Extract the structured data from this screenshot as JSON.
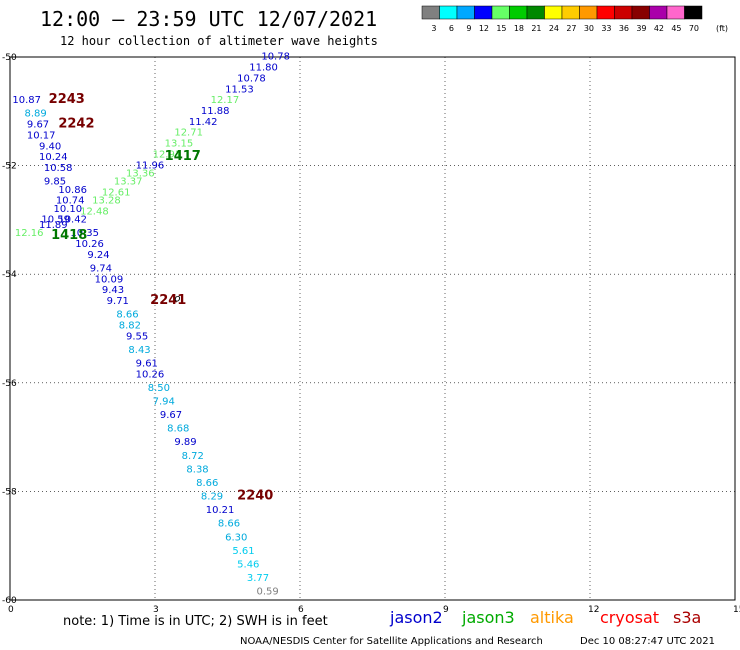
{
  "header": {
    "title": "12:00 – 23:59 UTC 12/07/2021",
    "subtitle": "12 hour collection of altimeter wave heights"
  },
  "legend": {
    "bins": [
      {
        "label": "3",
        "color": "#808080"
      },
      {
        "label": "6",
        "color": "#00ffff"
      },
      {
        "label": "9",
        "color": "#00a8ff"
      },
      {
        "label": "12",
        "color": "#0000ff"
      },
      {
        "label": "15",
        "color": "#66ff66"
      },
      {
        "label": "18",
        "color": "#00cc00"
      },
      {
        "label": "21",
        "color": "#008800"
      },
      {
        "label": "24",
        "color": "#ffff00"
      },
      {
        "label": "27",
        "color": "#ffcc00"
      },
      {
        "label": "30",
        "color": "#ff9900"
      },
      {
        "label": "33",
        "color": "#ff0000"
      },
      {
        "label": "36",
        "color": "#cc0000"
      },
      {
        "label": "39",
        "color": "#880000"
      },
      {
        "label": "42",
        "color": "#aa00aa"
      },
      {
        "label": "45",
        "color": "#ff66cc"
      },
      {
        "label": "70",
        "color": "#000000"
      }
    ],
    "unit": "(ft)"
  },
  "chart_data": {
    "type": "scatter",
    "xlim": [
      0,
      15
    ],
    "ylim": [
      -60,
      -50
    ],
    "x_ticks": [
      "0",
      "3",
      "6",
      "9",
      "12",
      "15"
    ],
    "y_ticks": [
      "-50",
      "-52",
      "-54",
      "-56",
      "-58",
      "-60"
    ],
    "grid": true,
    "points": [
      {
        "x": 5.2,
        "y": -50.05,
        "label": "10.78",
        "color": "#0000cc"
      },
      {
        "x": 4.95,
        "y": -50.25,
        "label": "11.80",
        "color": "#0000cc"
      },
      {
        "x": 4.7,
        "y": -50.45,
        "label": "10.78",
        "color": "#0000cc"
      },
      {
        "x": 4.45,
        "y": -50.65,
        "label": "11.53",
        "color": "#0000cc"
      },
      {
        "x": 4.15,
        "y": -50.85,
        "label": "12.17",
        "color": "#66ee66"
      },
      {
        "x": 3.95,
        "y": -51.05,
        "label": "11.88",
        "color": "#0000cc"
      },
      {
        "x": 3.7,
        "y": -51.25,
        "label": "11.42",
        "color": "#0000cc"
      },
      {
        "x": 3.4,
        "y": -51.45,
        "label": "12.71",
        "color": "#66ee66"
      },
      {
        "x": 3.2,
        "y": -51.65,
        "label": "13.15",
        "color": "#66ee66"
      },
      {
        "x": 2.95,
        "y": -51.85,
        "label": "12.91",
        "color": "#66ee66"
      },
      {
        "x": 2.6,
        "y": -52.05,
        "label": "11.96",
        "color": "#0000cc"
      },
      {
        "x": 2.4,
        "y": -52.2,
        "label": "13.36",
        "color": "#66ee66"
      },
      {
        "x": 2.15,
        "y": -52.35,
        "label": "13.37",
        "color": "#66ee66"
      },
      {
        "x": 1.9,
        "y": -52.55,
        "label": "12.61",
        "color": "#66ee66"
      },
      {
        "x": 1.7,
        "y": -52.7,
        "label": "13.28",
        "color": "#66ee66"
      },
      {
        "x": 1.45,
        "y": -52.9,
        "label": "12.48",
        "color": "#66ee66"
      },
      {
        "x": 0.05,
        "y": -50.85,
        "label": "10.87",
        "color": "#0000cc"
      },
      {
        "x": 0.3,
        "y": -51.1,
        "label": "8.89",
        "color": "#00aadd"
      },
      {
        "x": 0.35,
        "y": -51.3,
        "label": "9.67",
        "color": "#0000cc"
      },
      {
        "x": 0.35,
        "y": -51.5,
        "label": "10.17",
        "color": "#0000cc"
      },
      {
        "x": 0.6,
        "y": -51.7,
        "label": "9.40",
        "color": "#0000cc"
      },
      {
        "x": 0.6,
        "y": -51.9,
        "label": "10.24",
        "color": "#0000cc"
      },
      {
        "x": 0.7,
        "y": -52.1,
        "label": "10.58",
        "color": "#0000cc"
      },
      {
        "x": 0.7,
        "y": -52.35,
        "label": "9.85",
        "color": "#0000cc"
      },
      {
        "x": 1.0,
        "y": -52.5,
        "label": "10.86",
        "color": "#0000cc"
      },
      {
        "x": 0.95,
        "y": -52.7,
        "label": "10.74",
        "color": "#0000cc"
      },
      {
        "x": 0.9,
        "y": -52.85,
        "label": "10.10",
        "color": "#0000cc"
      },
      {
        "x": 1.0,
        "y": -53.05,
        "label": "10.42",
        "color": "#0000cc"
      },
      {
        "x": 0.65,
        "y": -53.05,
        "label": "10.59",
        "color": "#0000cc"
      },
      {
        "x": 0.6,
        "y": -53.15,
        "label": "11.89",
        "color": "#0000cc"
      },
      {
        "x": 0.1,
        "y": -53.3,
        "label": "12.16",
        "color": "#66ee66"
      },
      {
        "x": 1.25,
        "y": -53.3,
        "label": "10.35",
        "color": "#0000cc"
      },
      {
        "x": 1.35,
        "y": -53.5,
        "label": "10.26",
        "color": "#0000cc"
      },
      {
        "x": 1.6,
        "y": -53.7,
        "label": "9.24",
        "color": "#0000cc"
      },
      {
        "x": 1.65,
        "y": -53.95,
        "label": "9.74",
        "color": "#0000cc"
      },
      {
        "x": 1.75,
        "y": -54.15,
        "label": "10.09",
        "color": "#0000cc"
      },
      {
        "x": 1.9,
        "y": -54.35,
        "label": "9.43",
        "color": "#0000cc"
      },
      {
        "x": 2.0,
        "y": -54.55,
        "label": "9.71",
        "color": "#0000cc"
      },
      {
        "x": 2.2,
        "y": -54.8,
        "label": "8.66",
        "color": "#00aadd"
      },
      {
        "x": 2.25,
        "y": -55.0,
        "label": "8.82",
        "color": "#00aadd"
      },
      {
        "x": 2.4,
        "y": -55.2,
        "label": "9.55",
        "color": "#0000cc"
      },
      {
        "x": 2.45,
        "y": -55.45,
        "label": "8.43",
        "color": "#00aadd"
      },
      {
        "x": 2.6,
        "y": -55.7,
        "label": "9.61",
        "color": "#0000cc"
      },
      {
        "x": 2.6,
        "y": -55.9,
        "label": "10.26",
        "color": "#0000cc"
      },
      {
        "x": 2.85,
        "y": -56.15,
        "label": "8.50",
        "color": "#00aadd"
      },
      {
        "x": 2.95,
        "y": -56.4,
        "label": "7.94",
        "color": "#00aadd"
      },
      {
        "x": 3.1,
        "y": -56.65,
        "label": "9.67",
        "color": "#0000cc"
      },
      {
        "x": 3.25,
        "y": -56.9,
        "label": "8.68",
        "color": "#00aadd"
      },
      {
        "x": 3.4,
        "y": -57.15,
        "label": "9.89",
        "color": "#0000cc"
      },
      {
        "x": 3.55,
        "y": -57.4,
        "label": "8.72",
        "color": "#00aadd"
      },
      {
        "x": 3.65,
        "y": -57.65,
        "label": "8.38",
        "color": "#00aadd"
      },
      {
        "x": 3.85,
        "y": -57.9,
        "label": "8.66",
        "color": "#00aadd"
      },
      {
        "x": 3.95,
        "y": -58.15,
        "label": "8.29",
        "color": "#00aadd"
      },
      {
        "x": 4.05,
        "y": -58.4,
        "label": "10.21",
        "color": "#0000cc"
      },
      {
        "x": 4.3,
        "y": -58.65,
        "label": "8.66",
        "color": "#00aadd"
      },
      {
        "x": 4.45,
        "y": -58.9,
        "label": "6.30",
        "color": "#00aadd"
      },
      {
        "x": 4.6,
        "y": -59.15,
        "label": "5.61",
        "color": "#00ccee"
      },
      {
        "x": 4.7,
        "y": -59.4,
        "label": "5.46",
        "color": "#00ccee"
      },
      {
        "x": 4.9,
        "y": -59.65,
        "label": "3.77",
        "color": "#00ccee"
      },
      {
        "x": 5.1,
        "y": -59.9,
        "label": "0.59",
        "color": "#808080"
      }
    ],
    "annotations": [
      {
        "x": 0.8,
        "y": -50.85,
        "text": "2243",
        "color": "#770000"
      },
      {
        "x": 1.0,
        "y": -51.3,
        "text": "2242",
        "color": "#770000"
      },
      {
        "x": 3.2,
        "y": -51.9,
        "text": "1417",
        "color": "#007700"
      },
      {
        "x": 0.85,
        "y": -53.35,
        "text": "1418",
        "color": "#007700"
      },
      {
        "x": 2.9,
        "y": -54.55,
        "text": "2241",
        "color": "#770000"
      },
      {
        "x": 4.7,
        "y": -58.15,
        "text": "2240",
        "color": "#770000"
      }
    ],
    "markers": [
      {
        "x": 3.4,
        "y": -54.5,
        "text": "o"
      }
    ]
  },
  "note": "note: 1) Time is in UTC; 2) SWH is in feet",
  "satellites": [
    {
      "name": "jason2",
      "color": "#0000cc"
    },
    {
      "name": "jason3",
      "color": "#00aa00"
    },
    {
      "name": "altika",
      "color": "#ff9900"
    },
    {
      "name": "cryosat",
      "color": "#ff0000"
    },
    {
      "name": "s3a",
      "color": "#aa0000"
    }
  ],
  "footer": {
    "credit": "NOAA/NESDIS Center for Satellite Applications and Research",
    "timestamp": "Dec 10 08:27:47 UTC 2021"
  }
}
